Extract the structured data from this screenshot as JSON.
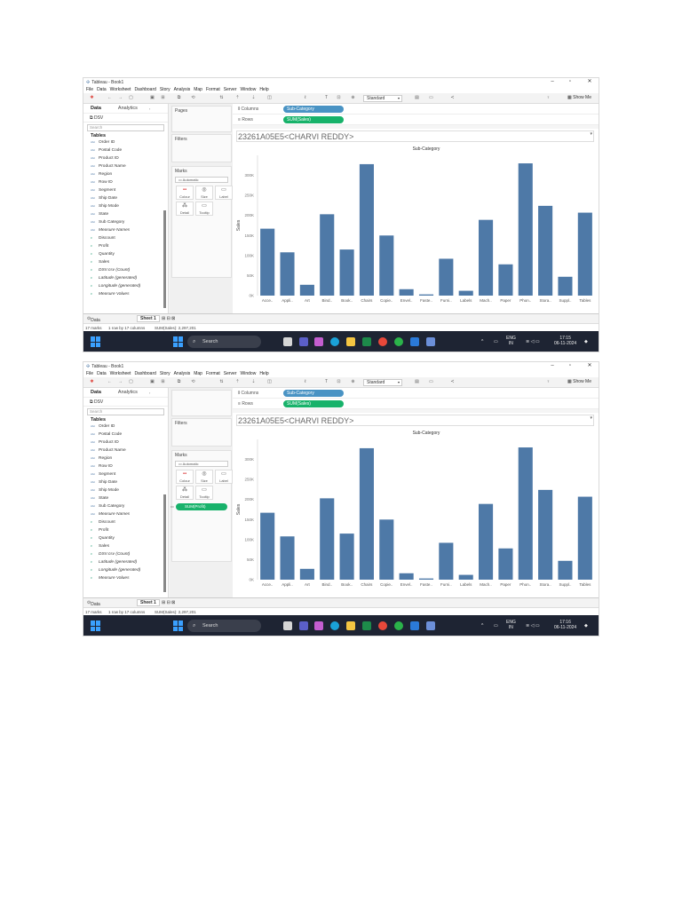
{
  "screenshots": [
    {
      "window_title": "Tableau - Book1",
      "menu": [
        "File",
        "Data",
        "Worksheet",
        "Dashboard",
        "Story",
        "Analysis",
        "Map",
        "Format",
        "Server",
        "Window",
        "Help"
      ],
      "toolbar": {
        "standard_label": "Standard",
        "show_me_label": "Show Me"
      },
      "data_pane": {
        "tab_data": "Data",
        "tab_analytics": "Analytics",
        "source": "DSV",
        "search_placeholder": "Search",
        "tables_heading": "Tables",
        "fields": [
          {
            "name": "Order ID",
            "type": "dim",
            "italic": false
          },
          {
            "name": "Postal Code",
            "type": "dim",
            "italic": false
          },
          {
            "name": "Product ID",
            "type": "dim",
            "italic": false
          },
          {
            "name": "Product Name",
            "type": "dim",
            "italic": false
          },
          {
            "name": "Region",
            "type": "dim",
            "italic": false
          },
          {
            "name": "Row ID",
            "type": "dim",
            "italic": false
          },
          {
            "name": "Segment",
            "type": "dim",
            "italic": false
          },
          {
            "name": "Ship Date",
            "type": "dim",
            "italic": false
          },
          {
            "name": "Ship Mode",
            "type": "dim",
            "italic": false
          },
          {
            "name": "State",
            "type": "dim",
            "italic": false
          },
          {
            "name": "Sub Category",
            "type": "dim",
            "italic": false
          },
          {
            "name": "Measure Names",
            "type": "dim",
            "italic": true
          },
          {
            "name": "Discount",
            "type": "meas",
            "italic": false
          },
          {
            "name": "Profit",
            "type": "meas",
            "italic": false
          },
          {
            "name": "Quantity",
            "type": "meas",
            "italic": false
          },
          {
            "name": "Sales",
            "type": "meas",
            "italic": false
          },
          {
            "name": "DSV.csv (Count)",
            "type": "meas",
            "italic": true
          },
          {
            "name": "Latitude (generated)",
            "type": "meas",
            "italic": true
          },
          {
            "name": "Longitude (generated)",
            "type": "meas",
            "italic": true
          },
          {
            "name": "Measure Values",
            "type": "meas",
            "italic": true
          }
        ]
      },
      "cards": {
        "pages": "Pages",
        "filters": "Filters",
        "marks": "Marks",
        "marks_type": "Automatic",
        "buttons": [
          "Colour",
          "Size",
          "Label",
          "Detail",
          "Tooltip"
        ],
        "extra_pill": ""
      },
      "shelves": {
        "columns_label": "Columns",
        "columns_pill": "Sub-Category",
        "rows_label": "Rows",
        "rows_pill": "SUM(Sales)"
      },
      "sheet_title": "23261A05E5<CHARVI REDDY>",
      "tabs": {
        "data_source": "Data Source",
        "sheet": "Sheet 1"
      },
      "status": {
        "marks": "17 marks",
        "rows_cols": "1 row by 17 columns",
        "sum": "SUM(Sales): 2,297,201"
      },
      "taskbar": {
        "search": "Search",
        "lang": "ENG",
        "region": "IN",
        "time": "17:15",
        "date": "06-11-2024"
      }
    },
    {
      "window_title": "Tableau - Book1",
      "menu": [
        "File",
        "Data",
        "Worksheet",
        "Dashboard",
        "Story",
        "Analysis",
        "Map",
        "Format",
        "Server",
        "Window",
        "Help"
      ],
      "toolbar": {
        "standard_label": "Standard",
        "show_me_label": "Show Me"
      },
      "data_pane": {
        "tab_data": "Data",
        "tab_analytics": "Analytics",
        "source": "DSV",
        "search_placeholder": "Search",
        "tables_heading": "Tables",
        "fields": [
          {
            "name": "Order ID",
            "type": "dim",
            "italic": false
          },
          {
            "name": "Postal Code",
            "type": "dim",
            "italic": false
          },
          {
            "name": "Product ID",
            "type": "dim",
            "italic": false
          },
          {
            "name": "Product Name",
            "type": "dim",
            "italic": false
          },
          {
            "name": "Region",
            "type": "dim",
            "italic": false
          },
          {
            "name": "Row ID",
            "type": "dim",
            "italic": false
          },
          {
            "name": "Segment",
            "type": "dim",
            "italic": false
          },
          {
            "name": "Ship Date",
            "type": "dim",
            "italic": false
          },
          {
            "name": "Ship Mode",
            "type": "dim",
            "italic": false
          },
          {
            "name": "State",
            "type": "dim",
            "italic": false
          },
          {
            "name": "Sub Category",
            "type": "dim",
            "italic": false
          },
          {
            "name": "Measure Names",
            "type": "dim",
            "italic": true
          },
          {
            "name": "Discount",
            "type": "meas",
            "italic": false
          },
          {
            "name": "Profit",
            "type": "meas",
            "italic": false
          },
          {
            "name": "Quantity",
            "type": "meas",
            "italic": false
          },
          {
            "name": "Sales",
            "type": "meas",
            "italic": false
          },
          {
            "name": "DSV.csv (Count)",
            "type": "meas",
            "italic": true
          },
          {
            "name": "Latitude (generated)",
            "type": "meas",
            "italic": true
          },
          {
            "name": "Longitude (generated)",
            "type": "meas",
            "italic": true
          },
          {
            "name": "Measure Values",
            "type": "meas",
            "italic": true
          }
        ]
      },
      "cards": {
        "pages": "",
        "filters": "Filters",
        "marks": "Marks",
        "marks_type": "Automatic",
        "buttons": [
          "Colour",
          "Size",
          "Label",
          "Detail",
          "Tooltip"
        ],
        "extra_pill": "SUM(Profit)"
      },
      "shelves": {
        "columns_label": "Columns",
        "columns_pill": "Sub-Category",
        "rows_label": "Rows",
        "rows_pill": "SUM(Sales)"
      },
      "sheet_title": "23261A05E5<CHARVI REDDY>",
      "tabs": {
        "data_source": "Data Source",
        "sheet": "Sheet 1"
      },
      "status": {
        "marks": "17 marks",
        "rows_cols": "1 row by 17 columns",
        "sum": "SUM(Sales): 2,297,201"
      },
      "taskbar": {
        "search": "Search",
        "lang": "ENG",
        "region": "IN",
        "time": "17:16",
        "date": "06-11-2024"
      }
    }
  ],
  "chart_data": [
    {
      "type": "bar",
      "title": "Sub-Category",
      "xlabel": "",
      "ylabel": "Sales",
      "ylim": [
        0,
        350000
      ],
      "yticks": [
        "0K",
        "50K",
        "100K",
        "150K",
        "200K",
        "250K",
        "300K"
      ],
      "categories": [
        "Acce..",
        "Appli..",
        "Art",
        "Bind..",
        "Book..",
        "Chairs",
        "Copie..",
        "Envel..",
        "Faste..",
        "Furni..",
        "Labels",
        "Mach..",
        "Paper",
        "Phon..",
        "Stora..",
        "Suppl..",
        "Tables"
      ],
      "values": [
        167000,
        108000,
        27000,
        203000,
        115000,
        328000,
        150000,
        16000,
        3000,
        92000,
        12000,
        189000,
        78000,
        330000,
        224000,
        47000,
        207000
      ],
      "bar_color": "#4e79a7",
      "grid": false
    },
    {
      "type": "bar",
      "title": "Sub-Category",
      "xlabel": "",
      "ylabel": "Sales",
      "ylim": [
        0,
        350000
      ],
      "yticks": [
        "0K",
        "50K",
        "100K",
        "150K",
        "200K",
        "250K",
        "300K"
      ],
      "categories": [
        "Acce..",
        "Appli..",
        "Art",
        "Bind..",
        "Book..",
        "Chairs",
        "Copie..",
        "Envel..",
        "Faste..",
        "Furni..",
        "Labels",
        "Mach..",
        "Paper",
        "Phon..",
        "Stora..",
        "Suppl..",
        "Tables"
      ],
      "values": [
        167000,
        108000,
        27000,
        203000,
        115000,
        328000,
        150000,
        16000,
        3000,
        92000,
        12000,
        189000,
        78000,
        330000,
        224000,
        47000,
        207000
      ],
      "bar_color": "#4e79a7",
      "grid": false
    }
  ]
}
